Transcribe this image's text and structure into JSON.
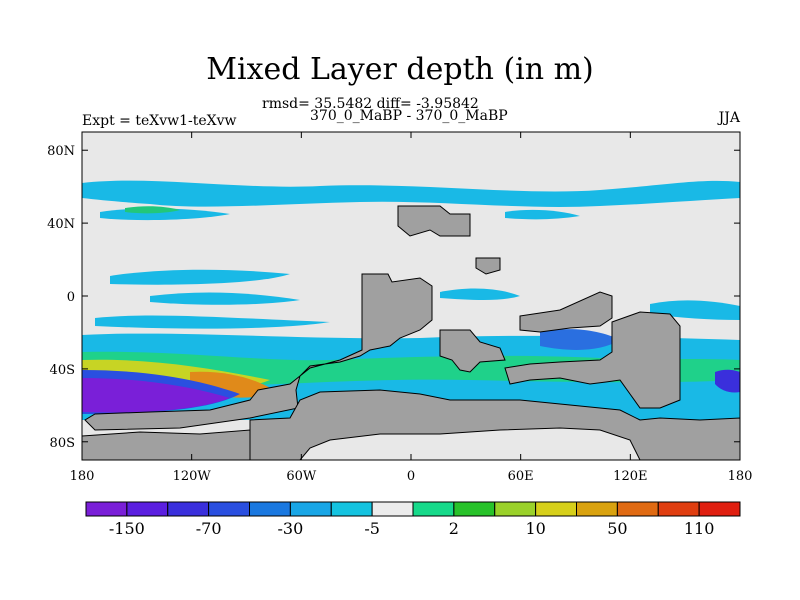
{
  "title": "Mixed Layer depth (in m)",
  "stats_line": "rmsd= 35.5482 diff= -3.95842",
  "comparison_line": "370_0_MaBP - 370_0_MaBP",
  "experiment_label": "Expt = teXvw1-teXvw",
  "season_label": "JJA",
  "map": {
    "lon_ticks": [
      "180",
      "120W",
      "60W",
      "0",
      "60E",
      "120E",
      "180"
    ],
    "lat_ticks": [
      "80N",
      "40N",
      "0",
      "40S",
      "80S"
    ],
    "land_color": "#a0a0a0",
    "ocean_background_color": "#e8e8e8"
  },
  "colorbar": {
    "colors": [
      "#7a1fd8",
      "#5b1fe0",
      "#3a2fdc",
      "#2a4fe0",
      "#1a78e0",
      "#19a6e6",
      "#14c3e0",
      "#ececec",
      "#17d98a",
      "#28c22a",
      "#9ad12a",
      "#d6cf1a",
      "#d9a20f",
      "#e06a12",
      "#e03e10",
      "#e01f10"
    ],
    "labels": [
      "-150",
      "-70",
      "-30",
      "-5",
      "2",
      "10",
      "50",
      "110"
    ]
  }
}
